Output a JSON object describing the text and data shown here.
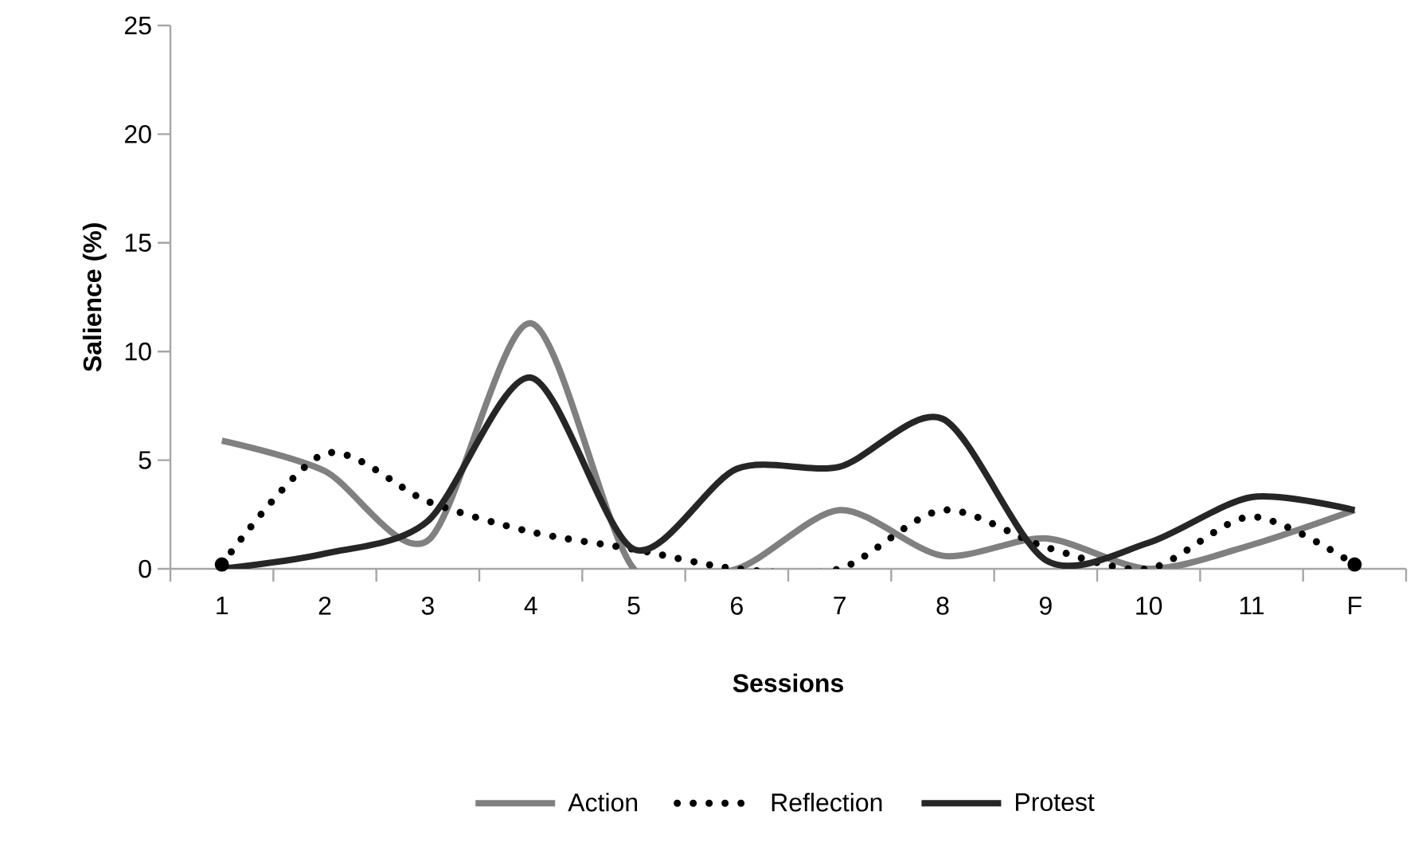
{
  "chart_data": {
    "type": "line",
    "xlabel": "Sessions",
    "ylabel": "Salience (%)",
    "categories": [
      "1",
      "2",
      "3",
      "4",
      "5",
      "6",
      "7",
      "8",
      "9",
      "10",
      "11",
      "F"
    ],
    "series": [
      {
        "name": "Action",
        "color": "#808080",
        "line_style": "solid",
        "values": [
          5.9,
          4.5,
          1.3,
          11.3,
          0,
          0,
          2.7,
          0.6,
          1.4,
          0,
          1.1,
          2.7
        ]
      },
      {
        "name": "Reflection",
        "color": "#000000",
        "line_style": "dotted",
        "values": [
          0.2,
          5.3,
          3.1,
          1.7,
          0.9,
          0,
          0,
          2.7,
          1.0,
          0,
          2.4,
          0.2
        ]
      },
      {
        "name": "Protest",
        "color": "#262626",
        "line_style": "solid",
        "values": [
          0,
          0.7,
          2.2,
          8.8,
          0.9,
          4.6,
          4.7,
          6.9,
          0.4,
          1.2,
          3.3,
          2.7
        ]
      }
    ],
    "ylim": [
      0,
      25
    ],
    "yticks": [
      0,
      5,
      10,
      15,
      20,
      25
    ],
    "grid": false,
    "legend": "bottom",
    "marker": "none"
  }
}
